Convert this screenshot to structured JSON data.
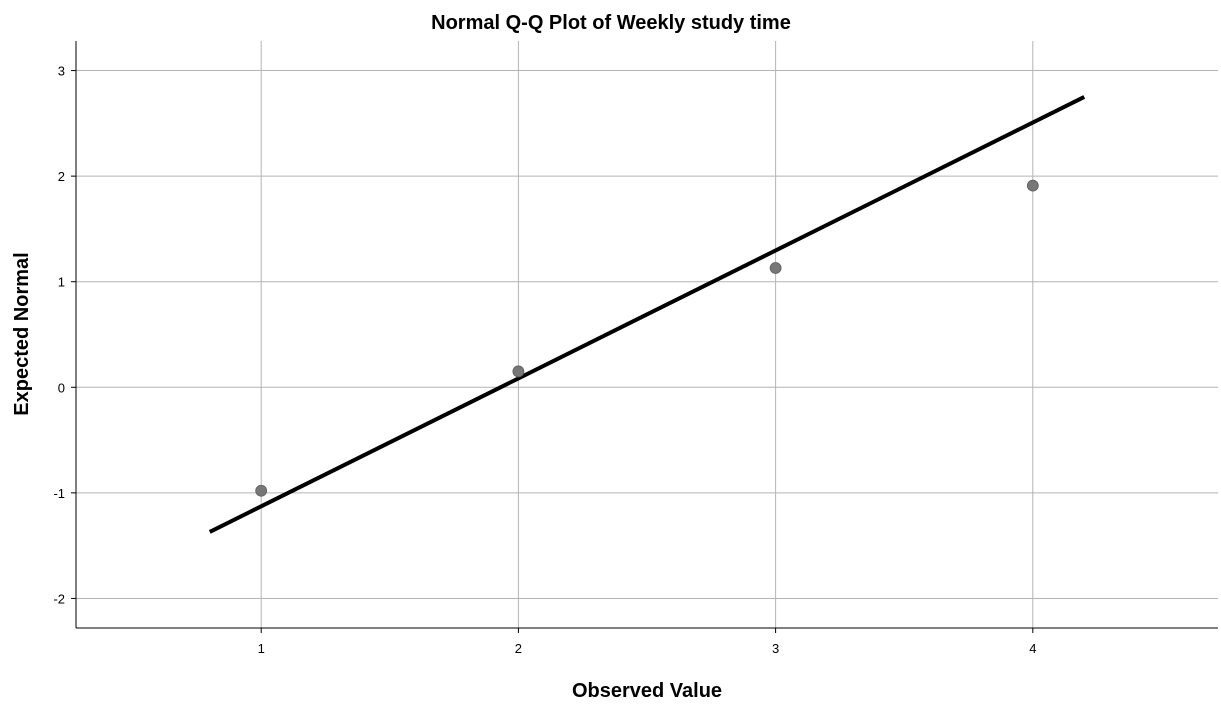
{
  "chart_data": {
    "type": "scatter",
    "title": "Normal Q-Q Plot of Weekly study time",
    "xlabel": "Observed Value",
    "ylabel": "Expected Normal",
    "xlim": [
      0.28,
      4.72
    ],
    "ylim": [
      -2.28,
      3.28
    ],
    "x_ticks": [
      1,
      2,
      3,
      4
    ],
    "y_ticks": [
      -2,
      -1,
      0,
      1,
      2,
      3
    ],
    "grid": true,
    "points": [
      {
        "x": 1,
        "y": -0.98
      },
      {
        "x": 2,
        "y": 0.15
      },
      {
        "x": 3,
        "y": 1.13
      },
      {
        "x": 4,
        "y": 1.91
      }
    ],
    "reference_line": {
      "x": [
        0.8,
        4.2
      ],
      "y": [
        -1.37,
        2.75
      ]
    },
    "point_color": "#777777",
    "line_color": "#000000"
  }
}
